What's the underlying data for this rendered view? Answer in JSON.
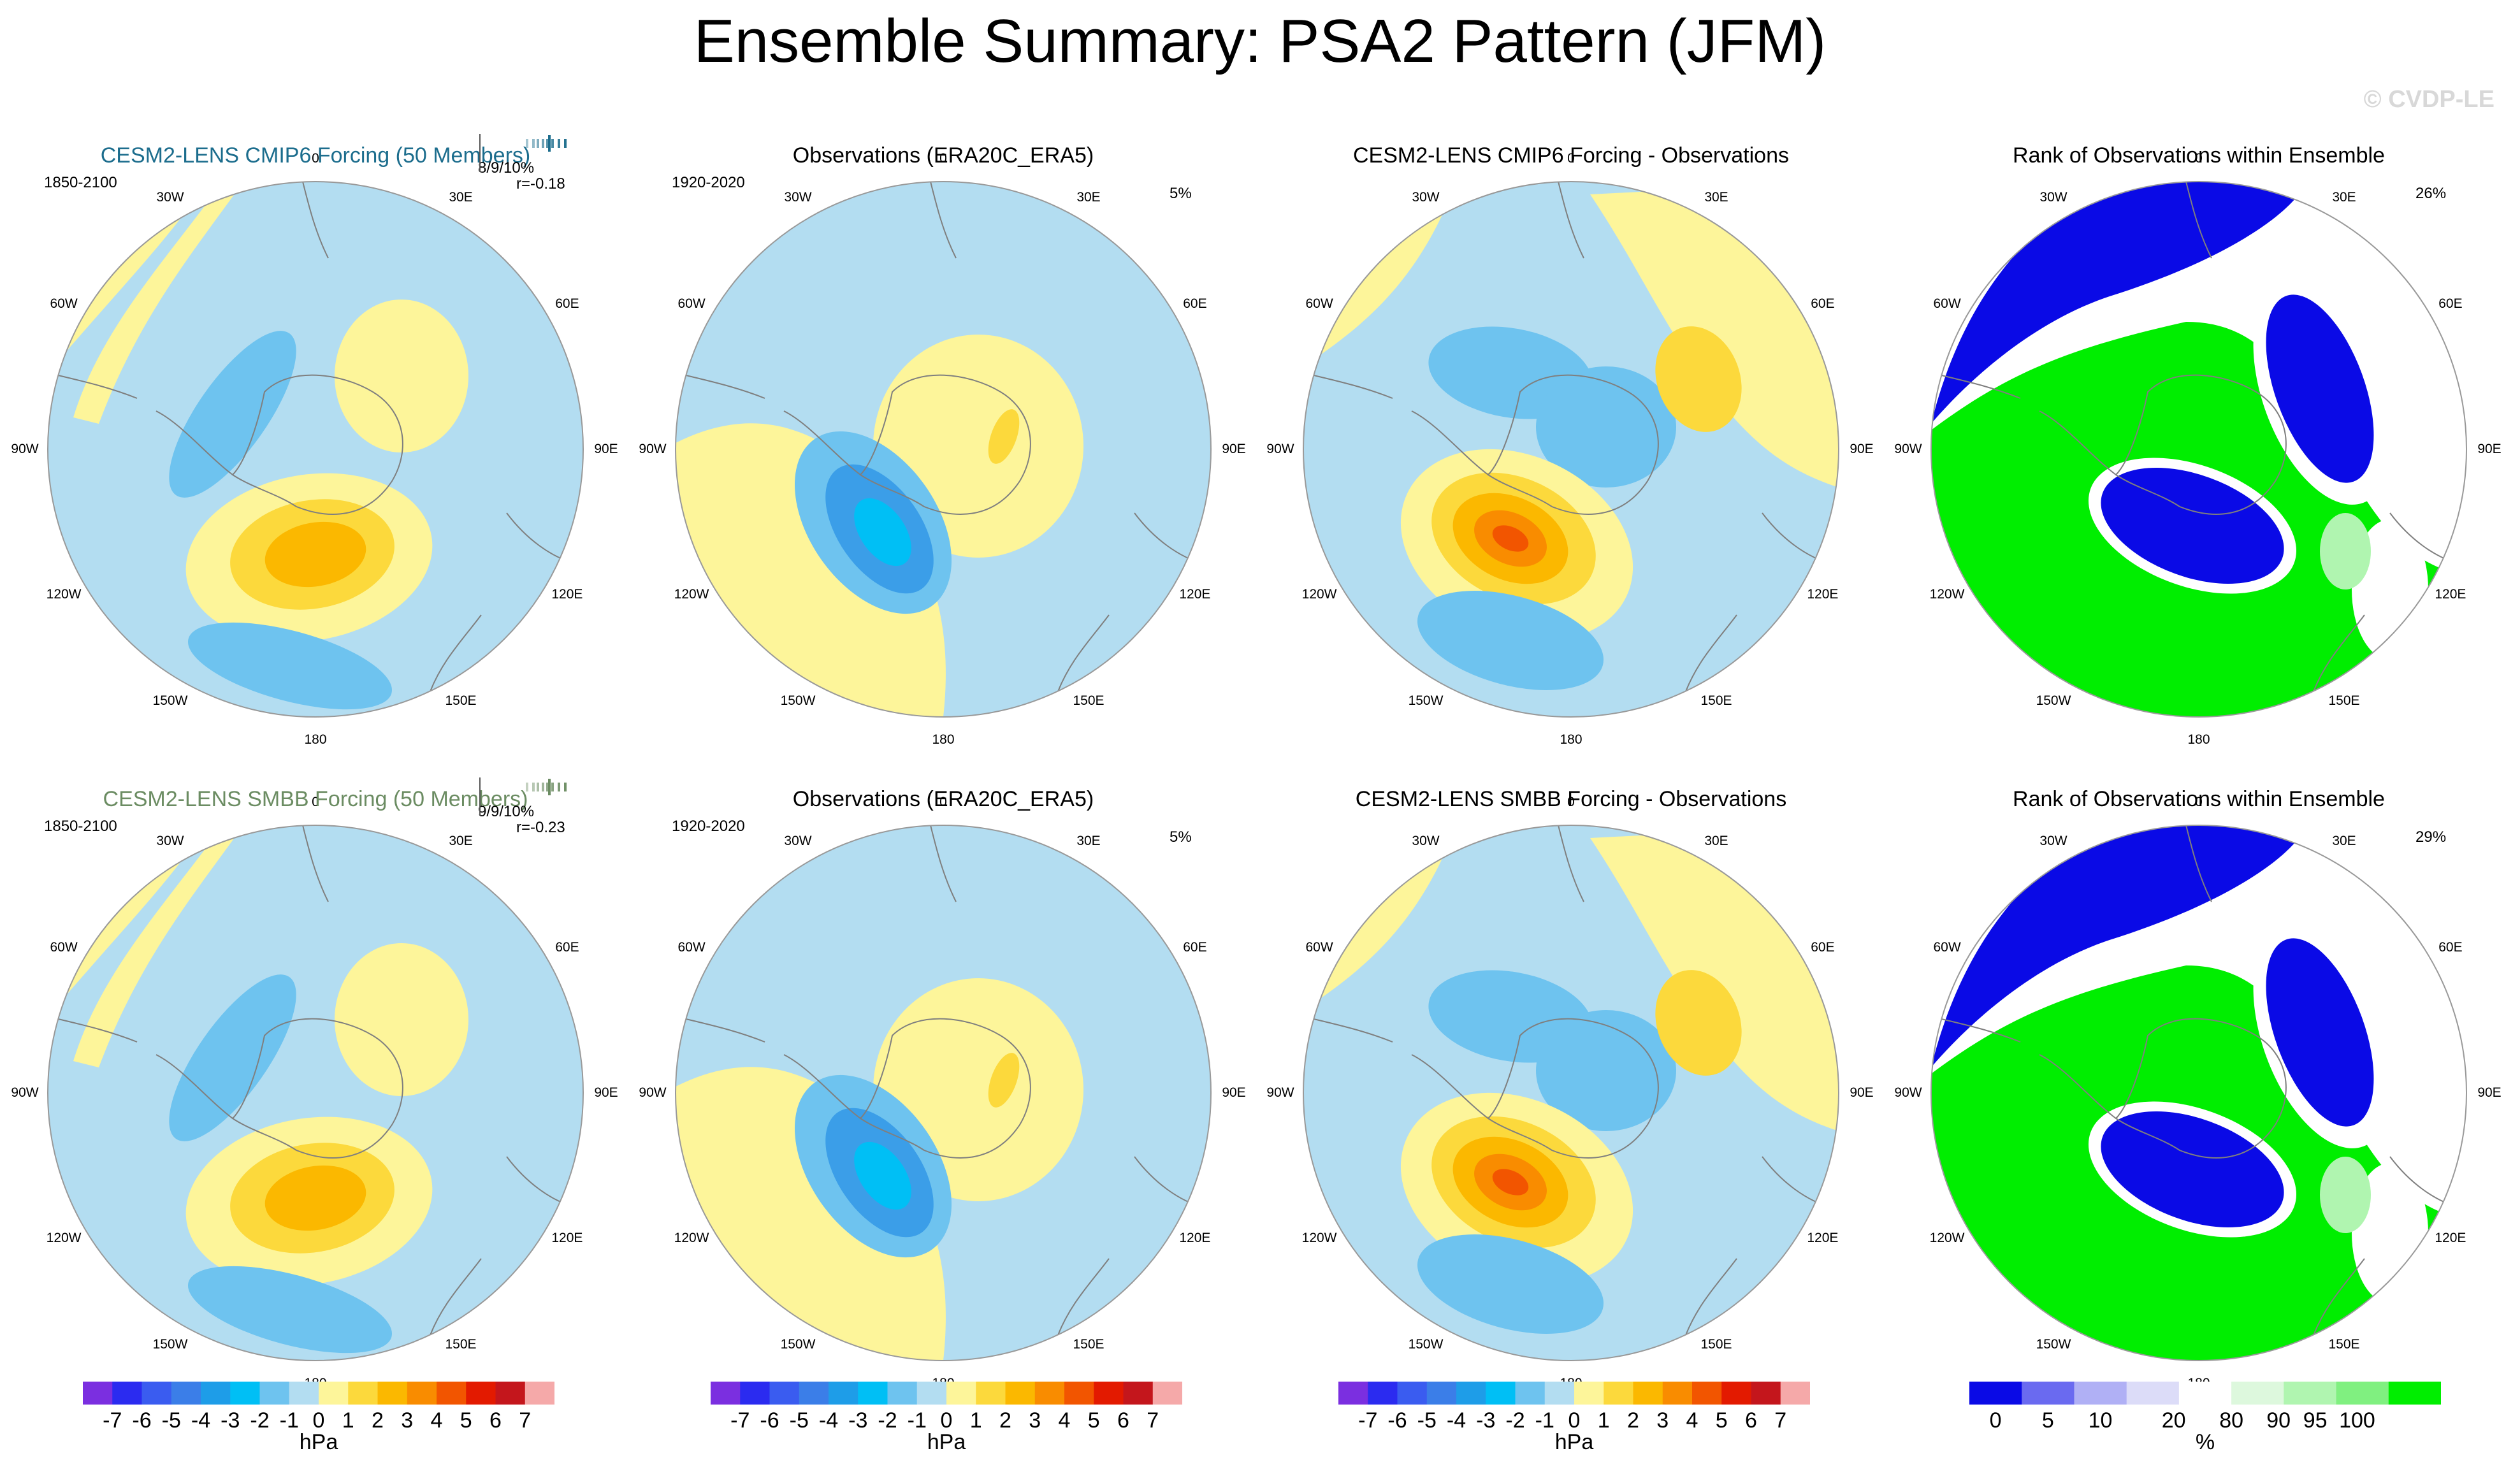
{
  "title": "Ensemble Summary: PSA2 Pattern (JFM)",
  "watermark": "© CVDP-LE",
  "longitude_labels": [
    "0",
    "30E",
    "60E",
    "90E",
    "120E",
    "150E",
    "180",
    "150W",
    "120W",
    "90W",
    "60W",
    "30W"
  ],
  "colors": {
    "model1_title": "#1c6d8d",
    "model2_title": "#6b8c62",
    "ocean_light_blue": "#b3ddf1",
    "land_outline": "#7f7f7f",
    "rank_blue": "#0a0ae6",
    "rank_green": "#00ee00"
  },
  "rows": [
    {
      "model": {
        "title": "CESM2-LENS CMIP6 Forcing (50 Members)",
        "period": "1850-2100",
        "stat_line1": "8/9/10%",
        "stat_line2": "r=-0.18"
      },
      "obs": {
        "title": "Observations (ERA20C_ERA5)",
        "period": "1920-2020",
        "stat": "5%"
      },
      "diff": {
        "title": "CESM2-LENS CMIP6 Forcing - Observations"
      },
      "rank": {
        "title": "Rank of Observations within Ensemble",
        "stat": "26%"
      }
    },
    {
      "model": {
        "title": "CESM2-LENS SMBB Forcing (50 Members)",
        "period": "1850-2100",
        "stat_line1": "9/9/10%",
        "stat_line2": "r=-0.23"
      },
      "obs": {
        "title": "Observations (ERA20C_ERA5)",
        "period": "1920-2020",
        "stat": "5%"
      },
      "diff": {
        "title": "CESM2-LENS SMBB Forcing - Observations"
      },
      "rank": {
        "title": "Rank of Observations within Ensemble",
        "stat": "29%"
      }
    }
  ],
  "colorbar_hpa": {
    "unit": "hPa",
    "tick_labels": [
      "-7",
      "-6",
      "-5",
      "-4",
      "-3",
      "-2",
      "-1",
      "0",
      "1",
      "2",
      "3",
      "4",
      "5",
      "6",
      "7"
    ],
    "colors": [
      "#7b2fe0",
      "#2b2bf0",
      "#3a5cf0",
      "#3b7ee8",
      "#1e9de8",
      "#00bff5",
      "#6ec3ef",
      "#b3ddf1",
      "#fdf59a",
      "#fcd93c",
      "#fbb800",
      "#f98c00",
      "#f25500",
      "#e31a00",
      "#c4161c",
      "#f5a9a9"
    ]
  },
  "colorbar_rank": {
    "unit": "%",
    "tick_labels": [
      "0",
      "5",
      "10",
      "20",
      "80",
      "90",
      "95",
      "100"
    ],
    "colors": [
      "#0a0ae6",
      "#6a6af0",
      "#b0b0f5",
      "#dcdcf8",
      "#ffffff",
      "#ddf8dd",
      "#b0f5b0",
      "#80f080",
      "#00ee00"
    ]
  }
}
